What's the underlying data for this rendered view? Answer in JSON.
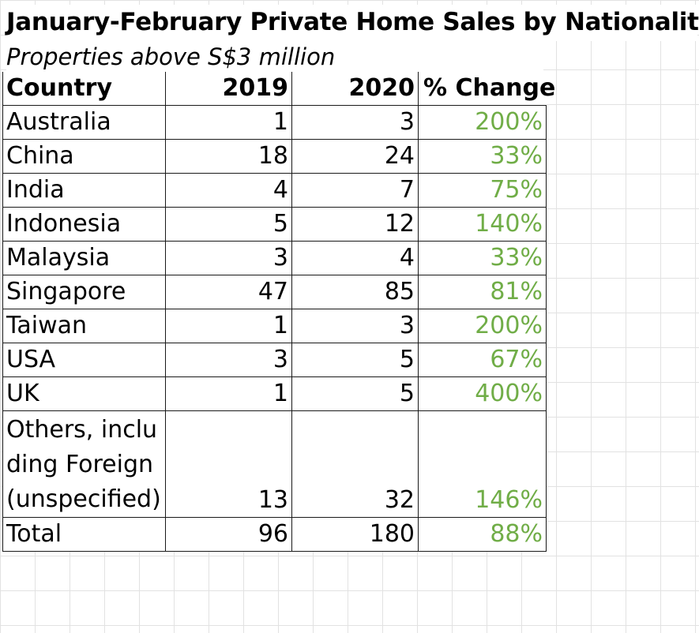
{
  "title": "January-February Private Home Sales by Nationality",
  "subtitle": "Properties above S$3 million",
  "headers": {
    "country": "Country",
    "y2019": "2019",
    "y2020": "2020",
    "change": "% Change"
  },
  "rows": [
    {
      "country": "Australia",
      "y2019": "1",
      "y2020": "3",
      "change": "200%"
    },
    {
      "country": "China",
      "y2019": "18",
      "y2020": "24",
      "change": "33%"
    },
    {
      "country": "India",
      "y2019": "4",
      "y2020": "7",
      "change": "75%"
    },
    {
      "country": "Indonesia",
      "y2019": "5",
      "y2020": "12",
      "change": "140%"
    },
    {
      "country": "Malaysia",
      "y2019": "3",
      "y2020": "4",
      "change": "33%"
    },
    {
      "country": "Singapore",
      "y2019": "47",
      "y2020": "85",
      "change": "81%"
    },
    {
      "country": "Taiwan",
      "y2019": "1",
      "y2020": "3",
      "change": "200%"
    },
    {
      "country": "USA",
      "y2019": "3",
      "y2020": "5",
      "change": "67%"
    },
    {
      "country": "UK",
      "y2019": "1",
      "y2020": "5",
      "change": "400%"
    },
    {
      "country": "Others, including Foreign (unspecified)",
      "y2019": "13",
      "y2020": "32",
      "change": "146%"
    },
    {
      "country": "Total",
      "y2019": "96",
      "y2020": "180",
      "change": "88%"
    }
  ],
  "colors": {
    "change_text": "#70ad47",
    "gridline": "#e2e2e2",
    "border": "#1a1a1a"
  }
}
